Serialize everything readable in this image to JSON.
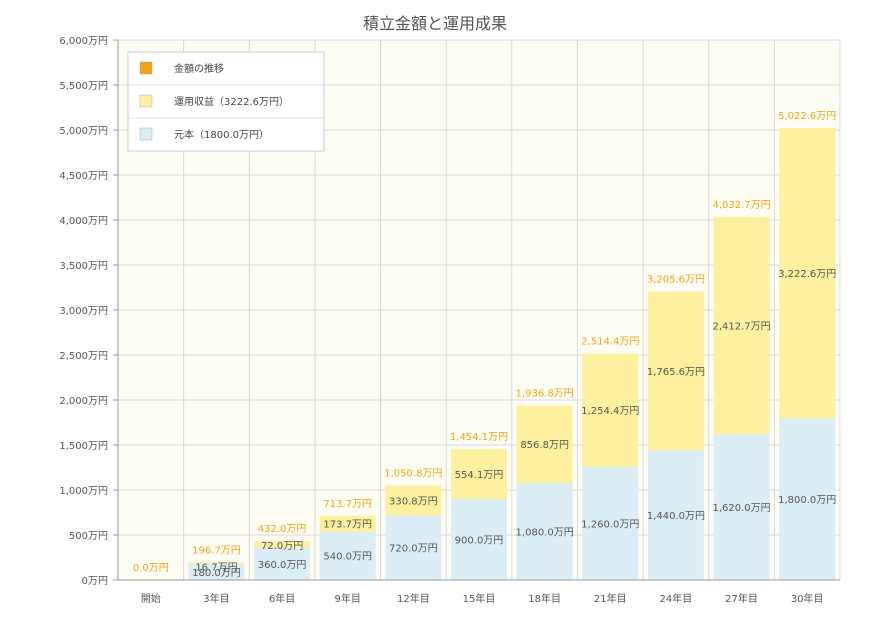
{
  "chart_data": {
    "type": "bar",
    "stacked": true,
    "title": "積立金額と運用成果",
    "categories": [
      "開始",
      "3年目",
      "6年目",
      "9年目",
      "12年目",
      "15年目",
      "18年目",
      "21年目",
      "24年目",
      "27年目",
      "30年目"
    ],
    "series": [
      {
        "name": "元本（1800.0万円）",
        "color": "#dbeef5",
        "values": [
          0,
          180.0,
          360.0,
          540.0,
          720.0,
          900.0,
          1080.0,
          1260.0,
          1440.0,
          1620.0,
          1800.0
        ],
        "labels": [
          "",
          "180.0万円",
          "360.0万円",
          "540.0万円",
          "720.0万円",
          "900.0万円",
          "1,080.0万円",
          "1,260.0万円",
          "1,440.0万円",
          "1,620.0万円",
          "1,800.0万円"
        ]
      },
      {
        "name": "運用収益（3222.6万円）",
        "color": "#fdf1a0",
        "values": [
          0,
          16.7,
          72.0,
          173.7,
          330.8,
          554.1,
          856.8,
          1254.4,
          1765.6,
          2412.7,
          3222.6
        ],
        "labels": [
          "",
          "16.7万円",
          "72.0万円",
          "173.7万円",
          "330.8万円",
          "554.1万円",
          "856.8万円",
          "1,254.4万円",
          "1,765.6万円",
          "2,412.7万円",
          "3,222.6万円"
        ]
      }
    ],
    "totals": {
      "name": "金額の推移",
      "color": "#f2a314",
      "values": [
        0.0,
        196.7,
        432.0,
        713.7,
        1050.8,
        1454.1,
        1936.8,
        2514.4,
        3205.6,
        4032.7,
        5022.6
      ],
      "labels": [
        "0.0万円",
        "196.7万円",
        "432.0万円",
        "713.7万円",
        "1,050.8万円",
        "1,454.1万円",
        "1,936.8万円",
        "2,514.4万円",
        "3,205.6万円",
        "4,032.7万円",
        "5,022.6万円"
      ]
    },
    "ylim": [
      0,
      6000
    ],
    "yticks": [
      0,
      500,
      1000,
      1500,
      2000,
      2500,
      3000,
      3500,
      4000,
      4500,
      5000,
      5500,
      6000
    ],
    "ytick_labels": [
      "0万円",
      "500万円",
      "1,000万円",
      "1,500万円",
      "2,000万円",
      "2,500万円",
      "3,000万円",
      "3,500万円",
      "4,000万円",
      "4,500万円",
      "5,000万円",
      "5,500万円",
      "6,000万円"
    ],
    "xlabel": "",
    "ylabel": "",
    "grid": true,
    "legend_position": "top-left",
    "legend": [
      {
        "label": "金額の推移",
        "color": "#f2a314"
      },
      {
        "label": "運用収益（3222.6万円）",
        "color": "#fdf1a0"
      },
      {
        "label": "元本（1800.0万円）",
        "color": "#dbeef5"
      }
    ],
    "colors": {
      "plot_background": "#fefdf4",
      "grid": "#d8d8d8",
      "axis": "#999999",
      "tick_text": "#555555",
      "bar_label": "#555555",
      "total_label": "#f2a314"
    }
  }
}
